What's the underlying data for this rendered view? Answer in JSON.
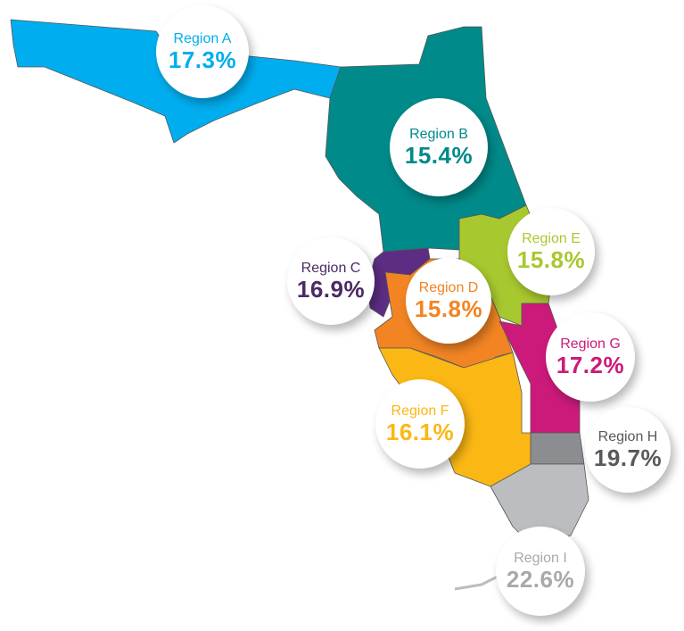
{
  "regions": [
    {
      "name": "Region A",
      "value": "17.3%",
      "color": "#00aeef",
      "text_color": "#00aeef"
    },
    {
      "name": "Region B",
      "value": "15.4%",
      "color": "#008a8a",
      "text_color": "#008a8a"
    },
    {
      "name": "Region C",
      "value": "16.9%",
      "color": "#5c2d83",
      "text_color": "#4b2a66"
    },
    {
      "name": "Region D",
      "value": "15.8%",
      "color": "#f28423",
      "text_color": "#f28423"
    },
    {
      "name": "Region E",
      "value": "15.8%",
      "color": "#a8c82f",
      "text_color": "#a8c82f"
    },
    {
      "name": "Region F",
      "value": "16.1%",
      "color": "#fbb714",
      "text_color": "#fbb714"
    },
    {
      "name": "Region G",
      "value": "17.2%",
      "color": "#cc1a7a",
      "text_color": "#cc1a7a"
    },
    {
      "name": "Region H",
      "value": "19.7%",
      "color": "#8c8d90",
      "text_color": "#58595b"
    },
    {
      "name": "Region I",
      "value": "22.6%",
      "color": "#bcbdc0",
      "text_color": "#a7a9ac"
    }
  ]
}
